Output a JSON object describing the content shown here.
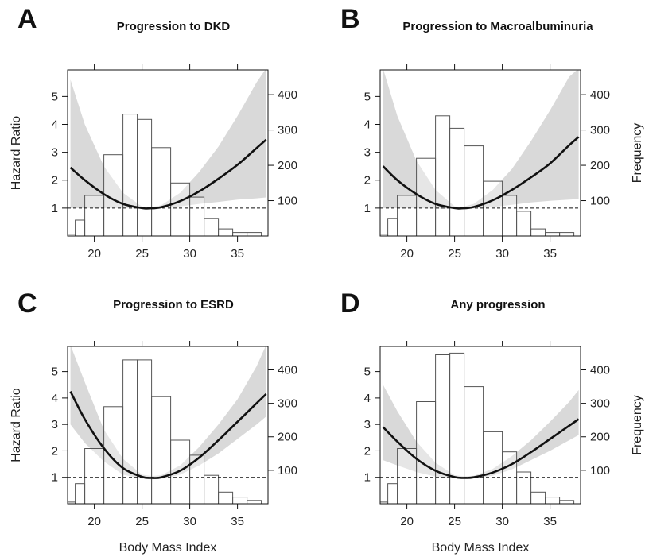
{
  "chart_data": [
    {
      "type": "line",
      "letter": "A",
      "title": "Progression to DKD",
      "xlabel": "",
      "ylabel_left": "Hazard Ratio",
      "ylabel_right": "",
      "xlim": [
        17.2,
        38.2
      ],
      "ylim_left": [
        0,
        5.95
      ],
      "ylim_right": [
        0,
        470
      ],
      "x_ticks": [
        20,
        25,
        30,
        35
      ],
      "y_ticks_left": [
        1,
        2,
        3,
        4,
        5
      ],
      "y_ticks_right": [
        100,
        200,
        300,
        400
      ],
      "reference_line": 1,
      "hazard_ratio": {
        "x": [
          17.5,
          19,
          21,
          23,
          25,
          25.7,
          27,
          29,
          31,
          33,
          35,
          37,
          38
        ],
        "y": [
          2.45,
          2.0,
          1.5,
          1.15,
          1.0,
          0.99,
          1.03,
          1.25,
          1.6,
          2.05,
          2.55,
          3.15,
          3.45
        ]
      },
      "ci_lower": {
        "x": [
          17.5,
          19,
          21,
          23,
          25,
          25.7,
          27,
          29,
          31,
          33,
          35,
          37,
          38
        ],
        "y": [
          1.0,
          1.0,
          1.0,
          1.0,
          0.98,
          0.97,
          0.99,
          1.06,
          1.15,
          1.22,
          1.3,
          1.35,
          1.38
        ]
      },
      "ci_upper": {
        "x": [
          17.5,
          19,
          21,
          23,
          25,
          25.7,
          27,
          29,
          31,
          33,
          35,
          37,
          38
        ],
        "y": [
          5.6,
          4.0,
          2.5,
          1.55,
          1.05,
          1.02,
          1.1,
          1.55,
          2.3,
          3.2,
          4.3,
          5.5,
          6.0
        ]
      },
      "histogram": {
        "bin_edges": [
          17,
          18,
          19,
          21,
          23,
          24.5,
          26,
          28,
          30,
          31.5,
          33,
          34.5,
          36,
          37.5
        ],
        "counts": [
          5,
          45,
          115,
          230,
          345,
          330,
          250,
          150,
          110,
          50,
          20,
          10,
          10
        ]
      }
    },
    {
      "type": "line",
      "letter": "B",
      "title": "Progression to Macroalbuminuria",
      "xlabel": "",
      "ylabel_left": "",
      "ylabel_right": "Frequency",
      "xlim": [
        17.2,
        38.2
      ],
      "ylim_left": [
        0,
        5.95
      ],
      "ylim_right": [
        0,
        470
      ],
      "x_ticks": [
        20,
        25,
        30,
        35
      ],
      "y_ticks_left": [
        1,
        2,
        3,
        4,
        5
      ],
      "y_ticks_right": [
        100,
        200,
        300,
        400
      ],
      "reference_line": 1,
      "hazard_ratio": {
        "x": [
          17.5,
          19,
          21,
          23,
          25,
          25.7,
          27,
          29,
          31,
          33,
          35,
          37,
          38
        ],
        "y": [
          2.5,
          2.0,
          1.5,
          1.15,
          1.0,
          0.99,
          1.04,
          1.28,
          1.65,
          2.1,
          2.6,
          3.25,
          3.55
        ]
      },
      "ci_lower": {
        "x": [
          17.5,
          19,
          21,
          23,
          25,
          25.7,
          27,
          29,
          31,
          33,
          35,
          37,
          38
        ],
        "y": [
          1.0,
          1.0,
          1.0,
          0.98,
          0.97,
          0.96,
          0.98,
          1.04,
          1.12,
          1.2,
          1.26,
          1.3,
          1.32
        ]
      },
      "ci_upper": {
        "x": [
          17.5,
          19,
          21,
          23,
          25,
          25.7,
          27,
          29,
          31,
          33,
          35,
          37,
          38
        ],
        "y": [
          6.0,
          4.3,
          2.7,
          1.65,
          1.06,
          1.03,
          1.15,
          1.65,
          2.4,
          3.4,
          4.5,
          5.7,
          6.0
        ]
      },
      "histogram": {
        "bin_edges": [
          17,
          18,
          19,
          21,
          23,
          24.5,
          26,
          28,
          30,
          31.5,
          33,
          34.5,
          36,
          37.5
        ],
        "counts": [
          5,
          50,
          115,
          220,
          340,
          305,
          255,
          155,
          115,
          70,
          20,
          10,
          10
        ]
      }
    },
    {
      "type": "line",
      "letter": "C",
      "title": "Progression to ESRD",
      "xlabel": "Body Mass Index",
      "ylabel_left": "Hazard Ratio",
      "ylabel_right": "",
      "xlim": [
        17.2,
        38.2
      ],
      "ylim_left": [
        0,
        5.95
      ],
      "ylim_right": [
        0,
        470
      ],
      "x_ticks": [
        20,
        25,
        30,
        35
      ],
      "y_ticks_left": [
        1,
        2,
        3,
        4,
        5
      ],
      "y_ticks_right": [
        100,
        200,
        300,
        400
      ],
      "reference_line": 1,
      "hazard_ratio": {
        "x": [
          17.5,
          19,
          21,
          23,
          25,
          26,
          27,
          29,
          31,
          33,
          35,
          37,
          38
        ],
        "y": [
          4.25,
          3.2,
          2.1,
          1.35,
          1.02,
          0.98,
          1.0,
          1.25,
          1.75,
          2.4,
          3.1,
          3.8,
          4.15
        ]
      },
      "ci_lower": {
        "x": [
          17.5,
          19,
          21,
          23,
          25,
          26,
          27,
          29,
          31,
          33,
          35,
          37,
          38
        ],
        "y": [
          3.0,
          2.3,
          1.6,
          1.1,
          0.95,
          0.92,
          0.94,
          1.1,
          1.45,
          1.9,
          2.45,
          3.0,
          3.3
        ]
      },
      "ci_upper": {
        "x": [
          17.5,
          19,
          21,
          23,
          25,
          26,
          27,
          29,
          31,
          33,
          35,
          37,
          38
        ],
        "y": [
          6.0,
          4.6,
          2.8,
          1.7,
          1.1,
          1.05,
          1.08,
          1.45,
          2.15,
          3.0,
          3.95,
          5.2,
          6.0
        ]
      },
      "histogram": {
        "bin_edges": [
          17,
          18,
          19,
          21,
          23,
          24.5,
          26,
          28,
          30,
          31.5,
          33,
          34.5,
          36,
          37.5
        ],
        "counts": [
          5,
          60,
          165,
          290,
          430,
          430,
          320,
          190,
          145,
          85,
          35,
          20,
          10
        ]
      }
    },
    {
      "type": "line",
      "letter": "D",
      "title": "Any progression",
      "xlabel": "Body Mass Index",
      "ylabel_left": "",
      "ylabel_right": "Frequency",
      "xlim": [
        17.2,
        38.2
      ],
      "ylim_left": [
        0,
        5.95
      ],
      "ylim_right": [
        0,
        470
      ],
      "x_ticks": [
        20,
        25,
        30,
        35
      ],
      "y_ticks_left": [
        1,
        2,
        3,
        4,
        5
      ],
      "y_ticks_right": [
        100,
        200,
        300,
        400
      ],
      "reference_line": 1,
      "hazard_ratio": {
        "x": [
          17.5,
          19,
          21,
          23,
          25,
          26,
          27,
          29,
          31,
          33,
          35,
          37,
          38
        ],
        "y": [
          2.9,
          2.35,
          1.7,
          1.25,
          1.01,
          0.98,
          1.0,
          1.18,
          1.5,
          1.95,
          2.45,
          2.95,
          3.2
        ]
      },
      "ci_lower": {
        "x": [
          17.5,
          19,
          21,
          23,
          25,
          26,
          27,
          29,
          31,
          33,
          35,
          37,
          38
        ],
        "y": [
          1.65,
          1.45,
          1.2,
          1.03,
          0.96,
          0.94,
          0.96,
          1.06,
          1.3,
          1.65,
          2.0,
          2.4,
          2.6
        ]
      },
      "ci_upper": {
        "x": [
          17.5,
          19,
          21,
          23,
          25,
          26,
          27,
          29,
          31,
          33,
          35,
          37,
          38
        ],
        "y": [
          4.5,
          3.5,
          2.35,
          1.55,
          1.08,
          1.04,
          1.06,
          1.32,
          1.8,
          2.4,
          3.1,
          3.85,
          4.3
        ]
      },
      "histogram": {
        "bin_edges": [
          17,
          18,
          19,
          21,
          23,
          24.5,
          26,
          28,
          30,
          31.5,
          33,
          34.5,
          36,
          37.5
        ],
        "counts": [
          5,
          60,
          165,
          305,
          445,
          450,
          350,
          215,
          155,
          95,
          35,
          20,
          10
        ]
      }
    }
  ],
  "colors": {
    "confidence_band": "#d9d9d9",
    "curve": "#111111",
    "bars": "#ffffff",
    "bar_edge": "#555555",
    "axis": "#111111"
  }
}
